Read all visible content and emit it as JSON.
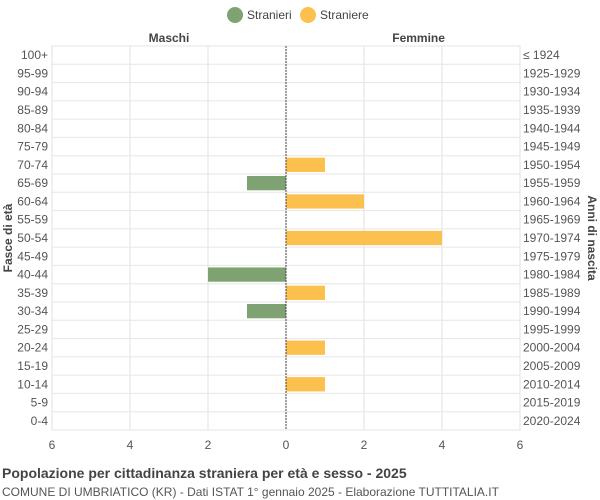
{
  "chart_data": {
    "type": "bar",
    "orientation": "horizontal-population-pyramid",
    "legend": {
      "placement": "top-center",
      "items": [
        {
          "name": "Stranieri",
          "color": "#7fa273"
        },
        {
          "name": "Straniere",
          "color": "#fcc04e"
        }
      ]
    },
    "side_labels": {
      "left": "Maschi",
      "right": "Femmine"
    },
    "ylabel_left": "Fasce di età",
    "ylabel_right": "Anni di nascita",
    "xlim": [
      -6,
      6
    ],
    "xticks": [
      -6,
      -4,
      -2,
      0,
      2,
      4,
      6
    ],
    "xtick_labels": [
      "6",
      "4",
      "2",
      "0",
      "2",
      "4",
      "6"
    ],
    "grid": true,
    "categories": [
      "100+",
      "95-99",
      "90-94",
      "85-89",
      "80-84",
      "75-79",
      "70-74",
      "65-69",
      "60-64",
      "55-59",
      "50-54",
      "45-49",
      "40-44",
      "35-39",
      "30-34",
      "25-29",
      "20-24",
      "15-19",
      "10-14",
      "5-9",
      "0-4"
    ],
    "birth_years": [
      "≤ 1924",
      "1925-1929",
      "1930-1934",
      "1935-1939",
      "1940-1944",
      "1945-1949",
      "1950-1954",
      "1955-1959",
      "1960-1964",
      "1965-1969",
      "1970-1974",
      "1975-1979",
      "1980-1984",
      "1985-1989",
      "1990-1994",
      "1995-1999",
      "2000-2004",
      "2005-2009",
      "2010-2014",
      "2015-2019",
      "2020-2024"
    ],
    "series": [
      {
        "name": "Stranieri",
        "side": "left",
        "color": "#7fa273",
        "values": [
          0,
          0,
          0,
          0,
          0,
          0,
          0,
          1,
          0,
          0,
          0,
          0,
          2,
          0,
          1,
          0,
          0,
          0,
          0,
          0,
          0
        ]
      },
      {
        "name": "Straniere",
        "side": "right",
        "color": "#fcc04e",
        "values": [
          0,
          0,
          0,
          0,
          0,
          0,
          1,
          0,
          2,
          0,
          4,
          0,
          0,
          1,
          0,
          0,
          1,
          0,
          1,
          0,
          0
        ]
      }
    ]
  },
  "footer": {
    "title": "Popolazione per cittadinanza straniera per età e sesso - 2025",
    "subtitle": "COMUNE DI UMBRIATICO (KR) - Dati ISTAT 1° gennaio 2025 - Elaborazione TUTTITALIA.IT"
  }
}
